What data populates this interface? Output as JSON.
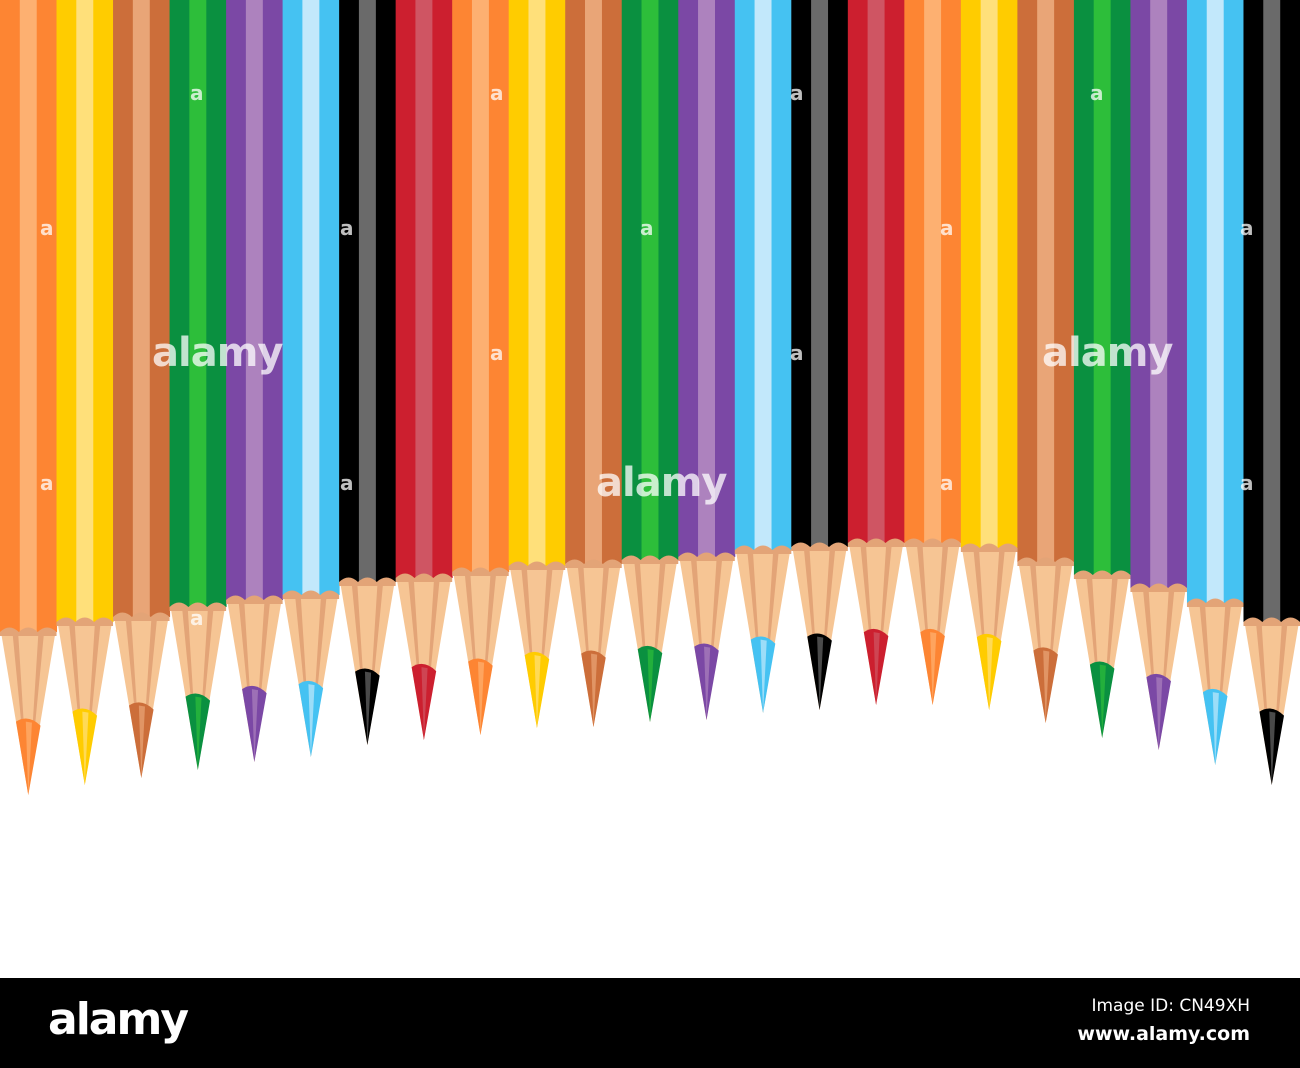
{
  "pencils": {
    "palette": [
      {
        "name": "orange",
        "dark": "#fd8533",
        "light": "#fdb071"
      },
      {
        "name": "yellow",
        "dark": "#ffcc00",
        "light": "#ffe07a"
      },
      {
        "name": "brown",
        "dark": "#cc6e3a",
        "light": "#e9a577"
      },
      {
        "name": "green",
        "dark": "#0a9040",
        "light": "#2dbe3a"
      },
      {
        "name": "purple",
        "dark": "#7b48a5",
        "light": "#ad82be"
      },
      {
        "name": "light-blue",
        "dark": "#45c2f2",
        "light": "#c2e8fb"
      },
      {
        "name": "black",
        "dark": "#000000",
        "light": "#6a6a6a"
      },
      {
        "name": "red",
        "dark": "#cc1f2f",
        "light": "#cf5563"
      }
    ],
    "count": 23,
    "wood_color": "#f6c594",
    "wood_shade": "#e3a477"
  },
  "watermark": {
    "text": "alamy",
    "letter": "a"
  },
  "footer": {
    "logo": "alamy",
    "image_id": "Image ID: CN49XH",
    "url": "www.alamy.com"
  }
}
